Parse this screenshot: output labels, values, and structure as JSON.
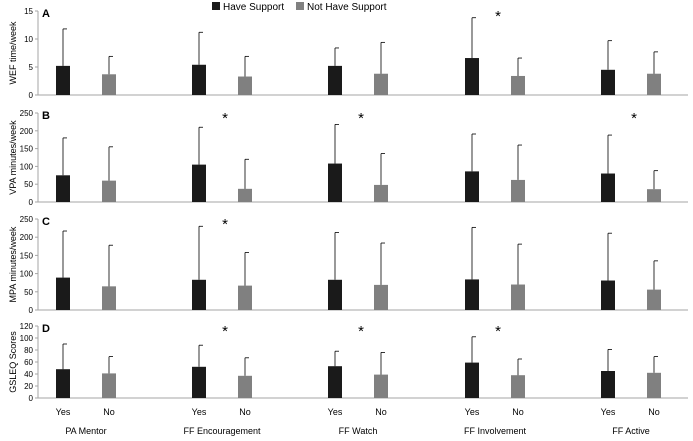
{
  "chart_data": {
    "type": "bar",
    "categories": [
      "PA Mentor",
      "FF Encouragement",
      "FF Watch",
      "FF Involvement",
      "FF Active"
    ],
    "sub_labels": [
      "Yes",
      "No"
    ],
    "legend": [
      {
        "name": "Have Support",
        "color": "#1a1a1a"
      },
      {
        "name": "Not Have Support",
        "color": "#808080"
      }
    ],
    "legend_position": "top",
    "grid": false,
    "panels": [
      {
        "letter": "A",
        "ylabel": "WEF time/week",
        "ylim": [
          0,
          15
        ],
        "yticks": [
          0,
          5,
          10,
          15
        ],
        "series": [
          {
            "name": "Have Support",
            "values": [
              5.2,
              5.4,
              5.2,
              6.6,
              4.5
            ],
            "err": [
              6.6,
              5.8,
              3.2,
              7.2,
              5.2
            ]
          },
          {
            "name": "Not Have Support",
            "values": [
              3.7,
              3.3,
              3.8,
              3.4,
              3.8
            ],
            "err": [
              3.2,
              3.6,
              5.6,
              3.2,
              3.9
            ]
          }
        ],
        "significant": [
          false,
          false,
          false,
          true,
          false
        ]
      },
      {
        "letter": "B",
        "ylabel": "VPA minutes/week",
        "ylim": [
          0,
          250
        ],
        "yticks": [
          0,
          50,
          100,
          150,
          200,
          250
        ],
        "series": [
          {
            "name": "Have Support",
            "values": [
              75,
              105,
              108,
              86,
              80
            ],
            "err": [
              105,
              105,
              110,
              105,
              108
            ]
          },
          {
            "name": "Not Have Support",
            "values": [
              60,
              37,
              48,
              62,
              36
            ],
            "err": [
              95,
              83,
              88,
              98,
              52
            ]
          }
        ],
        "significant": [
          false,
          true,
          true,
          false,
          true
        ]
      },
      {
        "letter": "C",
        "ylabel": "MPA minutes/week",
        "ylim": [
          0,
          250
        ],
        "yticks": [
          0,
          50,
          100,
          150,
          200,
          250
        ],
        "series": [
          {
            "name": "Have Support",
            "values": [
              89,
              83,
              83,
              84,
              81
            ],
            "err": [
              128,
              147,
              130,
              143,
              130
            ]
          },
          {
            "name": "Not Have Support",
            "values": [
              65,
              67,
              69,
              70,
              56
            ],
            "err": [
              113,
              91,
              115,
              111,
              79
            ]
          }
        ],
        "significant": [
          false,
          true,
          false,
          false,
          false
        ]
      },
      {
        "letter": "D",
        "ylabel": "GSLEQ Scores",
        "ylim": [
          0,
          120
        ],
        "yticks": [
          0,
          20,
          40,
          60,
          80,
          100,
          120
        ],
        "series": [
          {
            "name": "Have Support",
            "values": [
              48,
              52,
              53,
              59,
              45
            ],
            "err": [
              42,
              36,
              25,
              43,
              36
            ]
          },
          {
            "name": "Not Have Support",
            "values": [
              41,
              37,
              39,
              38,
              42
            ],
            "err": [
              28,
              30,
              37,
              27,
              27
            ]
          }
        ],
        "significant": [
          false,
          true,
          true,
          true,
          false
        ]
      }
    ]
  }
}
